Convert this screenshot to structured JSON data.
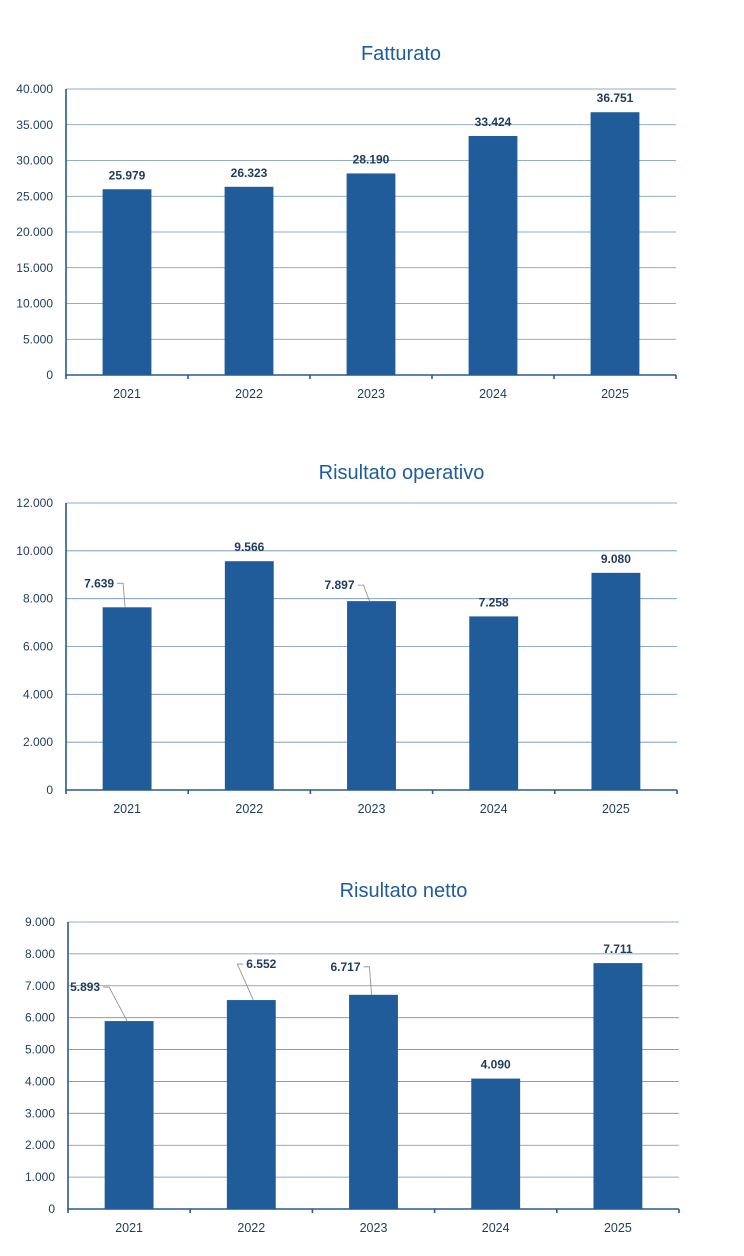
{
  "chart_data": [
    {
      "type": "bar",
      "title": "Fatturato",
      "categories": [
        "2021",
        "2022",
        "2023",
        "2024",
        "2025"
      ],
      "values": [
        25979,
        26323,
        28190,
        33424,
        36751
      ],
      "value_labels": [
        "25.979",
        "26.323",
        "28.190",
        "33.424",
        "36.751"
      ],
      "ylim": [
        0,
        40000
      ],
      "yticks": [
        0,
        5000,
        10000,
        15000,
        20000,
        25000,
        30000,
        35000,
        40000
      ],
      "ytick_labels": [
        "0",
        "5.000",
        "10.000",
        "15.000",
        "20.000",
        "25.000",
        "30.000",
        "35.000",
        "40.000"
      ],
      "xlabel": "",
      "ylabel": "",
      "grid": true,
      "legend": "none",
      "bar_color": "#1F5C99"
    },
    {
      "type": "bar",
      "title": "Risultato operativo",
      "categories": [
        "2021",
        "2022",
        "2023",
        "2024",
        "2025"
      ],
      "values": [
        7639,
        9566,
        7897,
        7258,
        9080
      ],
      "value_labels": [
        "7.639",
        "9.566",
        "7.897",
        "7.258",
        "9.080"
      ],
      "ylim": [
        0,
        12000
      ],
      "yticks": [
        0,
        2000,
        4000,
        6000,
        8000,
        10000,
        12000
      ],
      "ytick_labels": [
        "0",
        "2.000",
        "4.000",
        "6.000",
        "8.000",
        "10.000",
        "12.000"
      ],
      "xlabel": "",
      "ylabel": "",
      "grid": true,
      "legend": "none",
      "bar_color": "#1F5C99"
    },
    {
      "type": "bar",
      "title": "Risultato netto",
      "categories": [
        "2021",
        "2022",
        "2023",
        "2024",
        "2025"
      ],
      "values": [
        5893,
        6552,
        6717,
        4090,
        7711
      ],
      "value_labels": [
        "5.893",
        "6.552",
        "6.717",
        "4.090",
        "7.711"
      ],
      "ylim": [
        0,
        9000
      ],
      "yticks": [
        0,
        1000,
        2000,
        3000,
        4000,
        5000,
        6000,
        7000,
        8000,
        9000
      ],
      "ytick_labels": [
        "0",
        "1.000",
        "2.000",
        "3.000",
        "4.000",
        "5.000",
        "6.000",
        "7.000",
        "8.000",
        "9.000"
      ],
      "xlabel": "",
      "ylabel": "",
      "grid": true,
      "legend": "none",
      "bar_color": "#1F5C99"
    }
  ]
}
